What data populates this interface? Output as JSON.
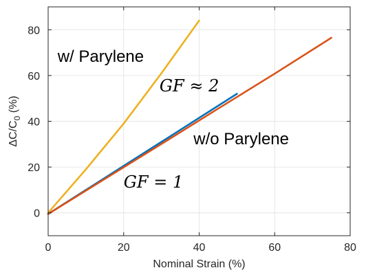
{
  "chart_data": {
    "type": "line",
    "title": "",
    "xlabel": "Nominal Strain (%)",
    "ylabel": "ΔC/C",
    "ylabel_subscript": "0",
    "ylabel_suffix": " (%)",
    "xlim": [
      0,
      80
    ],
    "ylim": [
      -10,
      90
    ],
    "x_ticks": [
      0,
      20,
      40,
      60,
      80
    ],
    "y_ticks": [
      0,
      20,
      40,
      60,
      80
    ],
    "grid": true,
    "series": [
      {
        "color": "#EDB120",
        "x": [
          0,
          10,
          20,
          30,
          40
        ],
        "y": [
          0,
          19,
          39,
          61,
          84
        ]
      },
      {
        "color": "#0072BD",
        "x": [
          0,
          10,
          20,
          30,
          40,
          50
        ],
        "y": [
          -0.5,
          10,
          20.5,
          31,
          41.5,
          52
        ]
      },
      {
        "color": "#D95319",
        "x": [
          0,
          15,
          30,
          45,
          60,
          75
        ],
        "y": [
          -0.5,
          14.8,
          30.1,
          45.5,
          60.8,
          76.5
        ]
      }
    ],
    "annotations": [
      {
        "id": "with-parylene",
        "text": "w/ Parylene",
        "x": 2.5,
        "y": 66
      },
      {
        "id": "gf-2",
        "text": "GF ≈ 2",
        "x": 29.5,
        "y": 53,
        "math": true
      },
      {
        "id": "without-parylene",
        "text": "w/o Parylene",
        "x": 38.5,
        "y": 30,
        "math": false
      },
      {
        "id": "gf-1",
        "text": "GF = 1",
        "x": 20,
        "y": 11,
        "math": true
      }
    ]
  }
}
